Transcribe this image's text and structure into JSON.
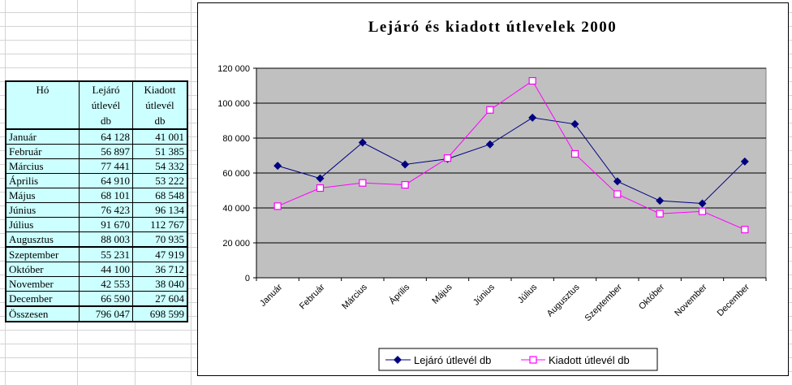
{
  "table": {
    "headers": [
      "Hó",
      "Lejáró\nútlevél\ndb",
      "Kiadott\nútlevél\ndb"
    ],
    "header_lines": [
      [
        "Hó"
      ],
      [
        "Lejáró",
        "útlevél",
        "db"
      ],
      [
        "Kiadott",
        "útlevél",
        "db"
      ]
    ],
    "rows": [
      {
        "month": "Január",
        "lejaro": "64 128",
        "kiadott": "41 001"
      },
      {
        "month": "Február",
        "lejaro": "56 897",
        "kiadott": "51 385"
      },
      {
        "month": "Március",
        "lejaro": "77 441",
        "kiadott": "54 332"
      },
      {
        "month": "Április",
        "lejaro": "64 910",
        "kiadott": "53 222"
      },
      {
        "month": "Május",
        "lejaro": "68 101",
        "kiadott": "68 548"
      },
      {
        "month": "Június",
        "lejaro": "76 423",
        "kiadott": "96 134"
      },
      {
        "month": "Július",
        "lejaro": "91 670",
        "kiadott": "112 767"
      },
      {
        "month": "Augusztus",
        "lejaro": "88 003",
        "kiadott": "70 935"
      },
      {
        "month": "Szeptember",
        "lejaro": "55 231",
        "kiadott": "47 919"
      },
      {
        "month": "Október",
        "lejaro": "44 100",
        "kiadott": "36 712"
      },
      {
        "month": "November",
        "lejaro": "42 553",
        "kiadott": "38 040"
      },
      {
        "month": "December",
        "lejaro": "66 590",
        "kiadott": "27 604"
      }
    ],
    "total": {
      "month": "Összesen",
      "lejaro": "796 047",
      "kiadott": "698 599"
    }
  },
  "chart_data": {
    "type": "line",
    "title": "Lejáró és kiadott útlevelek 2000",
    "categories": [
      "Január",
      "Február",
      "Március",
      "Április",
      "Május",
      "Június",
      "Július",
      "Augusztus",
      "Szeptember",
      "Október",
      "November",
      "December"
    ],
    "series": [
      {
        "name": "Lejáró útlevél db",
        "color": "#000080",
        "marker": "diamond",
        "values": [
          64128,
          56897,
          77441,
          64910,
          68101,
          76423,
          91670,
          88003,
          55231,
          44100,
          42553,
          66590
        ]
      },
      {
        "name": "Kiadott útlevél db",
        "color": "#ff00ff",
        "marker": "square",
        "values": [
          41001,
          51385,
          54332,
          53222,
          68548,
          96134,
          112767,
          70935,
          47919,
          36712,
          38040,
          27604
        ]
      }
    ],
    "ylim": [
      0,
      120000
    ],
    "yticks": [
      0,
      20000,
      40000,
      60000,
      80000,
      100000,
      120000
    ],
    "ytick_labels": [
      "0",
      "20 000",
      "40 000",
      "60 000",
      "80 000",
      "100 000",
      "120 000"
    ],
    "plot_background": "#c0c0c0",
    "grid": true,
    "legend": "bottom"
  }
}
